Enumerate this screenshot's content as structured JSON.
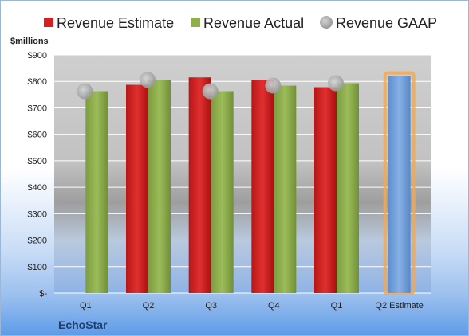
{
  "chart_data": {
    "type": "bar",
    "y_unit_label": "$millions",
    "brand": "EchoStar",
    "categories": [
      "Q1",
      "Q2",
      "Q3",
      "Q4",
      "Q1",
      "Q2 Estimate"
    ],
    "y_ticks": [
      "$-",
      "$100",
      "$200",
      "$300",
      "$400",
      "$500",
      "$600",
      "$700",
      "$800",
      "$900"
    ],
    "ylim": [
      0,
      900
    ],
    "grid": true,
    "legend_position": "top",
    "series": [
      {
        "name": "Revenue Estimate",
        "type": "bar",
        "color": "#d42020",
        "values": [
          null,
          787,
          815,
          806,
          778,
          null
        ]
      },
      {
        "name": "Revenue Actual",
        "type": "bar",
        "color": "#8fae4e",
        "values": [
          763,
          806,
          763,
          784,
          793,
          null
        ]
      },
      {
        "name": "Revenue GAAP",
        "type": "marker",
        "color": "#b8b8b8",
        "values": [
          763,
          806,
          763,
          784,
          793,
          null
        ]
      }
    ],
    "estimate_bar": {
      "category_index": 5,
      "value": 820,
      "color": "#6f9fd8",
      "highlight": "#f5a850"
    }
  }
}
